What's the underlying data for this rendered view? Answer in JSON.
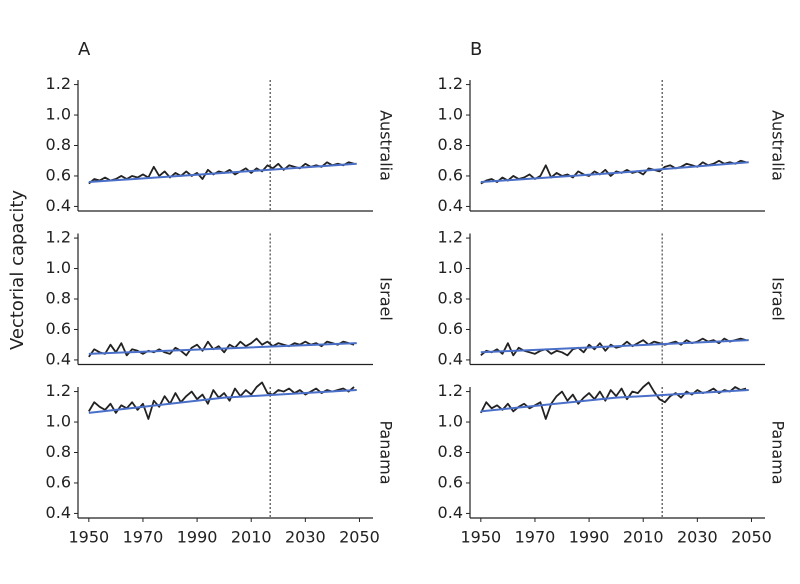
{
  "ylabel": "Vectorial capacity",
  "chart_data": [
    {
      "type": "line",
      "title": "A",
      "facet": "Australia",
      "x": [
        1950,
        1952,
        1954,
        1956,
        1958,
        1960,
        1962,
        1964,
        1966,
        1968,
        1970,
        1972,
        1974,
        1976,
        1978,
        1980,
        1982,
        1984,
        1986,
        1988,
        1990,
        1992,
        1994,
        1996,
        1998,
        2000,
        2002,
        2004,
        2006,
        2008,
        2010,
        2012,
        2014,
        2016,
        2018,
        2020,
        2022,
        2024,
        2026,
        2028,
        2030,
        2032,
        2034,
        2036,
        2038,
        2040,
        2042,
        2044,
        2046,
        2048
      ],
      "series": [
        {
          "color": "#222222",
          "values": [
            0.55,
            0.58,
            0.57,
            0.59,
            0.57,
            0.58,
            0.6,
            0.58,
            0.6,
            0.59,
            0.61,
            0.59,
            0.66,
            0.6,
            0.63,
            0.59,
            0.62,
            0.6,
            0.63,
            0.6,
            0.62,
            0.58,
            0.64,
            0.61,
            0.63,
            0.62,
            0.64,
            0.61,
            0.63,
            0.65,
            0.62,
            0.65,
            0.63,
            0.67,
            0.65,
            0.68,
            0.64,
            0.67,
            0.66,
            0.65,
            0.68,
            0.66,
            0.67,
            0.66,
            0.69,
            0.67,
            0.68,
            0.67,
            0.69,
            0.68
          ]
        },
        {
          "color": "#4a6fc9",
          "x": [
            1950,
            2000,
            2049
          ],
          "values": [
            0.56,
            0.62,
            0.68
          ]
        }
      ],
      "reference_x": 2017,
      "xlim": [
        1946,
        2055
      ],
      "ylim": [
        0.37,
        1.23
      ],
      "yticks": [
        0.4,
        0.6,
        0.8,
        {
          "value": 1,
          "label": "1.0"
        },
        1.2
      ]
    },
    {
      "type": "line",
      "title": "B",
      "facet": "Australia",
      "x": [
        1950,
        1952,
        1954,
        1956,
        1958,
        1960,
        1962,
        1964,
        1966,
        1968,
        1970,
        1972,
        1974,
        1976,
        1978,
        1980,
        1982,
        1984,
        1986,
        1988,
        1990,
        1992,
        1994,
        1996,
        1998,
        2000,
        2002,
        2004,
        2006,
        2008,
        2010,
        2012,
        2014,
        2016,
        2018,
        2020,
        2022,
        2024,
        2026,
        2028,
        2030,
        2032,
        2034,
        2036,
        2038,
        2040,
        2042,
        2044,
        2046,
        2048
      ],
      "series": [
        {
          "color": "#222222",
          "values": [
            0.55,
            0.57,
            0.58,
            0.56,
            0.59,
            0.57,
            0.6,
            0.58,
            0.59,
            0.61,
            0.58,
            0.6,
            0.67,
            0.59,
            0.62,
            0.6,
            0.61,
            0.59,
            0.63,
            0.61,
            0.6,
            0.63,
            0.61,
            0.64,
            0.6,
            0.63,
            0.62,
            0.64,
            0.62,
            0.63,
            0.61,
            0.65,
            0.64,
            0.63,
            0.66,
            0.67,
            0.65,
            0.66,
            0.68,
            0.67,
            0.66,
            0.69,
            0.67,
            0.68,
            0.7,
            0.68,
            0.69,
            0.68,
            0.7,
            0.69
          ]
        },
        {
          "color": "#4a6fc9",
          "x": [
            1950,
            2000,
            2049
          ],
          "values": [
            0.56,
            0.62,
            0.69
          ]
        }
      ],
      "reference_x": 2017,
      "xlim": [
        1946,
        2055
      ],
      "ylim": [
        0.37,
        1.23
      ],
      "yticks": [
        0.4,
        0.6,
        0.8,
        {
          "value": 1,
          "label": "1.0"
        },
        1.2
      ]
    },
    {
      "type": "line",
      "facet": "Israel",
      "x": [
        1950,
        1952,
        1954,
        1956,
        1958,
        1960,
        1962,
        1964,
        1966,
        1968,
        1970,
        1972,
        1974,
        1976,
        1978,
        1980,
        1982,
        1984,
        1986,
        1988,
        1990,
        1992,
        1994,
        1996,
        1998,
        2000,
        2002,
        2004,
        2006,
        2008,
        2010,
        2012,
        2014,
        2016,
        2018,
        2020,
        2022,
        2024,
        2026,
        2028,
        2030,
        2032,
        2034,
        2036,
        2038,
        2040,
        2042,
        2044,
        2046,
        2048
      ],
      "series": [
        {
          "color": "#222222",
          "values": [
            0.42,
            0.47,
            0.45,
            0.44,
            0.5,
            0.45,
            0.51,
            0.43,
            0.47,
            0.46,
            0.44,
            0.46,
            0.45,
            0.47,
            0.45,
            0.44,
            0.48,
            0.46,
            0.43,
            0.48,
            0.5,
            0.46,
            0.52,
            0.47,
            0.49,
            0.45,
            0.5,
            0.48,
            0.52,
            0.49,
            0.51,
            0.54,
            0.5,
            0.52,
            0.49,
            0.51,
            0.5,
            0.49,
            0.51,
            0.5,
            0.52,
            0.5,
            0.51,
            0.49,
            0.52,
            0.51,
            0.5,
            0.52,
            0.51,
            0.5
          ]
        },
        {
          "color": "#4a6fc9",
          "x": [
            1950,
            2000,
            2049
          ],
          "values": [
            0.44,
            0.475,
            0.51
          ]
        }
      ],
      "reference_x": 2017,
      "xlim": [
        1946,
        2055
      ],
      "ylim": [
        0.37,
        1.23
      ],
      "yticks": [
        0.4,
        0.6,
        0.8,
        {
          "value": 1,
          "label": "1.0"
        },
        1.2
      ]
    },
    {
      "type": "line",
      "facet": "Israel",
      "x": [
        1950,
        1952,
        1954,
        1956,
        1958,
        1960,
        1962,
        1964,
        1966,
        1968,
        1970,
        1972,
        1974,
        1976,
        1978,
        1980,
        1982,
        1984,
        1986,
        1988,
        1990,
        1992,
        1994,
        1996,
        1998,
        2000,
        2002,
        2004,
        2006,
        2008,
        2010,
        2012,
        2014,
        2016,
        2018,
        2020,
        2022,
        2024,
        2026,
        2028,
        2030,
        2032,
        2034,
        2036,
        2038,
        2040,
        2042,
        2044,
        2046,
        2048
      ],
      "series": [
        {
          "color": "#222222",
          "values": [
            0.43,
            0.46,
            0.45,
            0.47,
            0.44,
            0.51,
            0.43,
            0.48,
            0.46,
            0.45,
            0.44,
            0.46,
            0.47,
            0.44,
            0.46,
            0.45,
            0.43,
            0.47,
            0.48,
            0.45,
            0.5,
            0.47,
            0.51,
            0.46,
            0.5,
            0.48,
            0.49,
            0.52,
            0.49,
            0.51,
            0.53,
            0.5,
            0.52,
            0.51,
            0.5,
            0.51,
            0.52,
            0.5,
            0.53,
            0.51,
            0.52,
            0.54,
            0.52,
            0.53,
            0.51,
            0.54,
            0.52,
            0.53,
            0.54,
            0.53
          ]
        },
        {
          "color": "#4a6fc9",
          "x": [
            1950,
            2000,
            2049
          ],
          "values": [
            0.45,
            0.49,
            0.53
          ]
        }
      ],
      "reference_x": 2017,
      "xlim": [
        1946,
        2055
      ],
      "ylim": [
        0.37,
        1.23
      ],
      "yticks": [
        0.4,
        0.6,
        0.8,
        {
          "value": 1,
          "label": "1.0"
        },
        1.2
      ]
    },
    {
      "type": "line",
      "facet": "Panama",
      "x": [
        1950,
        1952,
        1954,
        1956,
        1958,
        1960,
        1962,
        1964,
        1966,
        1968,
        1970,
        1972,
        1974,
        1976,
        1978,
        1980,
        1982,
        1984,
        1986,
        1988,
        1990,
        1992,
        1994,
        1996,
        1998,
        2000,
        2002,
        2004,
        2006,
        2008,
        2010,
        2012,
        2014,
        2016,
        2018,
        2020,
        2022,
        2024,
        2026,
        2028,
        2030,
        2032,
        2034,
        2036,
        2038,
        2040,
        2042,
        2044,
        2046,
        2048
      ],
      "series": [
        {
          "color": "#222222",
          "values": [
            1.07,
            1.13,
            1.1,
            1.08,
            1.12,
            1.06,
            1.11,
            1.09,
            1.13,
            1.08,
            1.12,
            1.02,
            1.14,
            1.1,
            1.17,
            1.12,
            1.19,
            1.13,
            1.17,
            1.2,
            1.15,
            1.18,
            1.12,
            1.21,
            1.16,
            1.19,
            1.14,
            1.22,
            1.17,
            1.21,
            1.18,
            1.23,
            1.26,
            1.19,
            1.18,
            1.21,
            1.2,
            1.22,
            1.19,
            1.21,
            1.18,
            1.2,
            1.22,
            1.19,
            1.21,
            1.2,
            1.21,
            1.22,
            1.2,
            1.23
          ]
        },
        {
          "color": "#4a6fc9",
          "x": [
            1950,
            2000,
            2049
          ],
          "values": [
            1.06,
            1.16,
            1.21
          ]
        }
      ],
      "reference_x": 2017,
      "xlim": [
        1946,
        2055
      ],
      "ylim": [
        0.37,
        1.23
      ],
      "xticks": [
        1950,
        1970,
        1990,
        2010,
        2030,
        2050
      ],
      "yticks": [
        0.4,
        0.6,
        0.8,
        {
          "value": 1,
          "label": "1.0"
        },
        1.2
      ]
    },
    {
      "type": "line",
      "facet": "Panama",
      "x": [
        1950,
        1952,
        1954,
        1956,
        1958,
        1960,
        1962,
        1964,
        1966,
        1968,
        1970,
        1972,
        1974,
        1976,
        1978,
        1980,
        1982,
        1984,
        1986,
        1988,
        1990,
        1992,
        1994,
        1996,
        1998,
        2000,
        2002,
        2004,
        2006,
        2008,
        2010,
        2012,
        2014,
        2016,
        2018,
        2020,
        2022,
        2024,
        2026,
        2028,
        2030,
        2032,
        2034,
        2036,
        2038,
        2040,
        2042,
        2044,
        2046,
        2048
      ],
      "series": [
        {
          "color": "#222222",
          "values": [
            1.06,
            1.13,
            1.09,
            1.11,
            1.08,
            1.12,
            1.07,
            1.1,
            1.12,
            1.09,
            1.11,
            1.13,
            1.02,
            1.12,
            1.17,
            1.2,
            1.14,
            1.18,
            1.12,
            1.16,
            1.19,
            1.15,
            1.2,
            1.14,
            1.21,
            1.17,
            1.22,
            1.15,
            1.2,
            1.19,
            1.23,
            1.26,
            1.2,
            1.15,
            1.13,
            1.17,
            1.19,
            1.16,
            1.2,
            1.18,
            1.21,
            1.19,
            1.2,
            1.22,
            1.19,
            1.21,
            1.2,
            1.23,
            1.21,
            1.22
          ]
        },
        {
          "color": "#4a6fc9",
          "x": [
            1950,
            2000,
            2049
          ],
          "values": [
            1.07,
            1.16,
            1.21
          ]
        }
      ],
      "reference_x": 2017,
      "xlim": [
        1946,
        2055
      ],
      "ylim": [
        0.37,
        1.23
      ],
      "xticks": [
        1950,
        1970,
        1990,
        2010,
        2030,
        2050
      ],
      "yticks": [
        0.4,
        0.6,
        0.8,
        {
          "value": 1,
          "label": "1.0"
        },
        1.2
      ]
    }
  ]
}
